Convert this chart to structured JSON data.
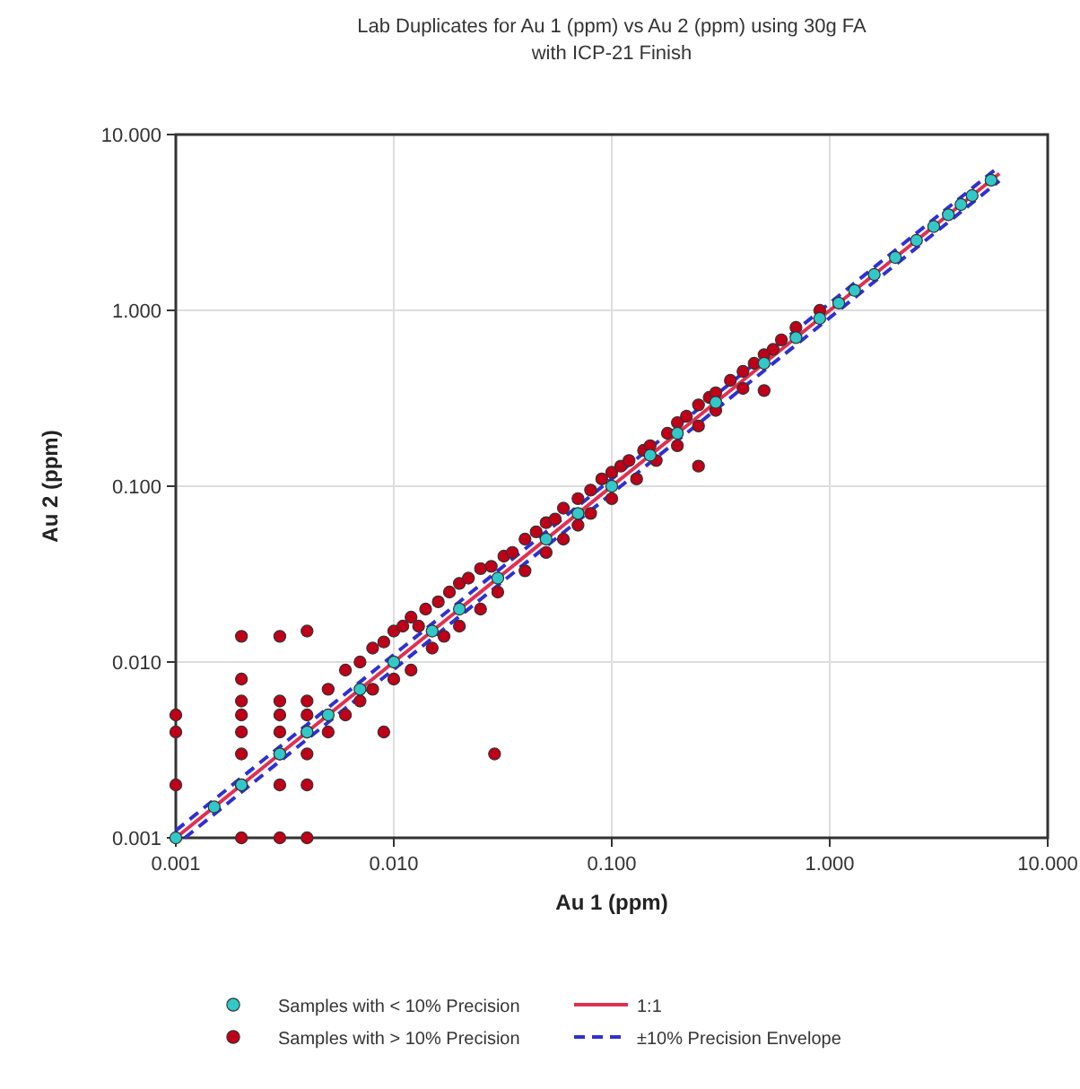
{
  "chart_data": {
    "type": "scatter",
    "title": "Lab Duplicates for Au 1 (ppm) vs Au 2 (ppm) using 30g FA with ICP-21 Finish",
    "xlabel": "Au 1 (ppm)",
    "ylabel": "Au 2 (ppm)",
    "log": "xy",
    "grid": true,
    "legend": "bottom",
    "xlim": [
      0.001,
      10
    ],
    "ylim": [
      0.001,
      10
    ],
    "xticks": [
      {
        "value": 0.001,
        "label": "0.001"
      },
      {
        "value": 0.01,
        "label": "0.010"
      },
      {
        "value": 0.1,
        "label": "0.100"
      },
      {
        "value": 1,
        "label": "1.000"
      },
      {
        "value": 10,
        "label": "10.000"
      }
    ],
    "yticks": [
      {
        "value": 0.001,
        "label": "0.001"
      },
      {
        "value": 0.01,
        "label": "0.010"
      },
      {
        "value": 0.1,
        "label": "0.100"
      },
      {
        "value": 1,
        "label": "1.000"
      },
      {
        "value": 10,
        "label": "10.000"
      }
    ],
    "series": [
      {
        "name": "Samples with > 10% Precision",
        "color": "#c00018",
        "marker": "circle",
        "x": [
          0.001,
          0.001,
          0.001,
          0.002,
          0.002,
          0.002,
          0.002,
          0.002,
          0.002,
          0.002,
          0.002,
          0.003,
          0.003,
          0.003,
          0.003,
          0.003,
          0.003,
          0.003,
          0.004,
          0.004,
          0.004,
          0.004,
          0.004,
          0.004,
          0.004,
          0.009,
          0.029,
          0.005,
          0.005,
          0.006,
          0.006,
          0.007,
          0.007,
          0.008,
          0.008,
          0.009,
          0.01,
          0.01,
          0.011,
          0.012,
          0.012,
          0.013,
          0.014,
          0.015,
          0.016,
          0.017,
          0.018,
          0.02,
          0.02,
          0.022,
          0.025,
          0.025,
          0.028,
          0.03,
          0.032,
          0.035,
          0.04,
          0.04,
          0.045,
          0.05,
          0.05,
          0.055,
          0.06,
          0.06,
          0.07,
          0.07,
          0.08,
          0.08,
          0.09,
          0.1,
          0.1,
          0.11,
          0.12,
          0.13,
          0.14,
          0.15,
          0.16,
          0.18,
          0.2,
          0.2,
          0.22,
          0.25,
          0.25,
          0.28,
          0.3,
          0.3,
          0.35,
          0.4,
          0.4,
          0.45,
          0.5,
          0.55,
          0.6,
          0.7,
          0.9,
          0.5,
          0.25
        ],
        "values": [
          0.005,
          0.004,
          0.002,
          0.014,
          0.008,
          0.006,
          0.005,
          0.004,
          0.003,
          0.002,
          0.001,
          0.014,
          0.006,
          0.005,
          0.004,
          0.003,
          0.002,
          0.001,
          0.015,
          0.006,
          0.005,
          0.004,
          0.003,
          0.002,
          0.001,
          0.004,
          0.003,
          0.007,
          0.004,
          0.009,
          0.005,
          0.01,
          0.006,
          0.012,
          0.007,
          0.013,
          0.015,
          0.008,
          0.016,
          0.018,
          0.009,
          0.016,
          0.02,
          0.012,
          0.022,
          0.014,
          0.025,
          0.028,
          0.016,
          0.03,
          0.034,
          0.02,
          0.035,
          0.025,
          0.04,
          0.042,
          0.05,
          0.033,
          0.055,
          0.062,
          0.042,
          0.065,
          0.075,
          0.05,
          0.085,
          0.06,
          0.095,
          0.07,
          0.11,
          0.12,
          0.085,
          0.13,
          0.14,
          0.11,
          0.16,
          0.17,
          0.14,
          0.2,
          0.23,
          0.17,
          0.25,
          0.29,
          0.22,
          0.32,
          0.34,
          0.27,
          0.4,
          0.45,
          0.36,
          0.5,
          0.56,
          0.6,
          0.68,
          0.8,
          1.0,
          0.35,
          0.13
        ]
      },
      {
        "name": "Samples with < 10% Precision",
        "color": "#33c8c8",
        "marker": "circle",
        "x": [
          0.001,
          0.0015,
          0.002,
          0.003,
          0.004,
          0.005,
          0.007,
          0.01,
          0.015,
          0.02,
          0.03,
          0.05,
          0.07,
          0.1,
          0.15,
          0.2,
          0.3,
          0.5,
          0.7,
          0.9,
          1.1,
          1.3,
          1.6,
          2.0,
          2.5,
          3.0,
          3.5,
          4.0,
          4.5,
          5.5
        ],
        "values": [
          0.001,
          0.0015,
          0.002,
          0.003,
          0.004,
          0.005,
          0.007,
          0.01,
          0.015,
          0.02,
          0.03,
          0.05,
          0.07,
          0.1,
          0.15,
          0.2,
          0.3,
          0.5,
          0.7,
          0.9,
          1.1,
          1.3,
          1.6,
          2.0,
          2.5,
          3.0,
          3.5,
          4.0,
          4.5,
          5.5
        ]
      },
      {
        "name": "1:1",
        "type": "line",
        "color": "#e03050",
        "line_style": "solid",
        "marker": "none",
        "x": [
          0.001,
          6
        ],
        "values": [
          0.001,
          6
        ]
      },
      {
        "name": "±10% Precision Envelope",
        "type": "line",
        "color": "#3030d0",
        "line_style": "dashed",
        "marker": "none",
        "x": [
          0.001,
          6
        ],
        "values": [
          0.0011,
          6.6
        ]
      },
      {
        "type": "line",
        "color": "#3030d0",
        "line_style": "dashed",
        "marker": "none",
        "x": [
          0.0011,
          6
        ],
        "values": [
          0.001,
          5.45
        ]
      }
    ]
  }
}
